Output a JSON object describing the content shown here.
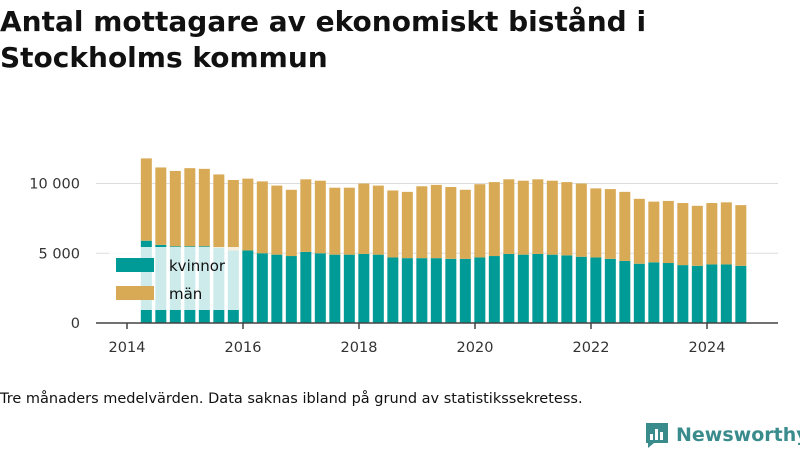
{
  "chart_data": {
    "type": "bar",
    "stacked": true,
    "title": "Antal mottagare av ekonomiskt bistånd i Stockholms kommun",
    "xlabel": "",
    "ylabel": "",
    "x_tick_labels": [
      "2014",
      "2016",
      "2018",
      "2020",
      "2022",
      "2024"
    ],
    "y_ticks": [
      0,
      5000,
      10000
    ],
    "y_tick_labels": [
      "0",
      "5 000",
      "10 000"
    ],
    "ylim": [
      0,
      12500
    ],
    "grid": true,
    "legend_position": "left-middle",
    "x": [
      "2014-05",
      "2014-08",
      "2014-11",
      "2015-02",
      "2015-05",
      "2015-08",
      "2015-11",
      "2016-02",
      "2016-05",
      "2016-08",
      "2016-11",
      "2017-02",
      "2017-05",
      "2017-08",
      "2017-11",
      "2018-02",
      "2018-05",
      "2018-08",
      "2018-11",
      "2019-02",
      "2019-05",
      "2019-08",
      "2019-11",
      "2020-02",
      "2020-05",
      "2020-08",
      "2020-11",
      "2021-02",
      "2021-05",
      "2021-08",
      "2021-11",
      "2022-02",
      "2022-05",
      "2022-08",
      "2022-11",
      "2023-02",
      "2023-05",
      "2023-08",
      "2023-11",
      "2024-02",
      "2024-05",
      "2024-08"
    ],
    "series": [
      {
        "name": "kvinnor",
        "color": "#009b96",
        "values": [
          5900,
          5600,
          5500,
          5500,
          5500,
          5400,
          5200,
          5200,
          5000,
          4900,
          4800,
          5100,
          5000,
          4900,
          4900,
          4950,
          4900,
          4700,
          4650,
          4650,
          4650,
          4600,
          4600,
          4700,
          4800,
          4950,
          4900,
          4950,
          4900,
          4850,
          4750,
          4700,
          4600,
          4450,
          4250,
          4350,
          4300,
          4150,
          4100,
          4200,
          4200,
          4100
        ]
      },
      {
        "name": "män",
        "color": "#d9aa56",
        "values": [
          5900,
          5550,
          5400,
          5600,
          5550,
          5250,
          5050,
          5150,
          5150,
          4950,
          4750,
          5200,
          5200,
          4800,
          4800,
          5050,
          4950,
          4800,
          4750,
          5150,
          5250,
          5150,
          4950,
          5250,
          5300,
          5350,
          5300,
          5350,
          5300,
          5250,
          5250,
          4950,
          5000,
          4950,
          4650,
          4350,
          4450,
          4450,
          4300,
          4400,
          4450,
          4350
        ]
      }
    ]
  },
  "note": "Tre månaders medelvärden. Data saknas ibland på grund av statistikssekretess.",
  "brand": {
    "name": "Newsworthy",
    "icon": "bar-chart-speech-bubble-icon",
    "color": "#3a8b8c"
  }
}
